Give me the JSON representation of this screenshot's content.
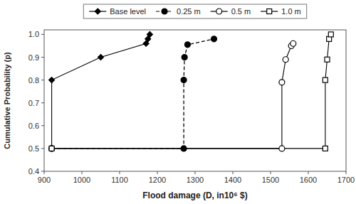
{
  "chart_data": {
    "type": "line",
    "xlabel": "Flood damage (D, in10⁶ $)",
    "ylabel": "Cumulative Probability (p)",
    "xlim": [
      900,
      1700
    ],
    "ylim": [
      0.4,
      1.02
    ],
    "xticks": [
      900,
      1000,
      1100,
      1200,
      1300,
      1400,
      1500,
      1600,
      1700
    ],
    "yticks": [
      0.4,
      0.5,
      0.6,
      0.7,
      0.8,
      0.9,
      {
        "value": 1.0,
        "label": "1.0"
      }
    ],
    "grid": false,
    "legend": "top",
    "color": "#000000",
    "series": [
      {
        "name": "Base level",
        "marker": "diamond",
        "line_style": "solid",
        "x": [
          920,
          920,
          1050,
          1170,
          1175,
          1180
        ],
        "values": [
          0.5,
          0.8,
          0.9,
          0.96,
          0.98,
          1.0
        ]
      },
      {
        "name": "0.25 m",
        "marker": "circle",
        "line_style": "dashed",
        "x": [
          920,
          1270,
          1270,
          1272,
          1280,
          1350
        ],
        "values": [
          0.5,
          0.5,
          0.8,
          0.9,
          0.955,
          0.98
        ]
      },
      {
        "name": "0.5 m",
        "marker": "open-circle",
        "line_style": "solid",
        "x": [
          920,
          1530,
          1530,
          1540,
          1555,
          1560
        ],
        "values": [
          0.5,
          0.5,
          0.79,
          0.89,
          0.95,
          0.96
        ]
      },
      {
        "name": "1.0 m",
        "marker": "open-square",
        "line_style": "solid",
        "x": [
          920,
          1645,
          1645,
          1650,
          1655,
          1660
        ],
        "values": [
          0.5,
          0.5,
          0.8,
          0.89,
          0.98,
          1.0
        ]
      }
    ]
  }
}
